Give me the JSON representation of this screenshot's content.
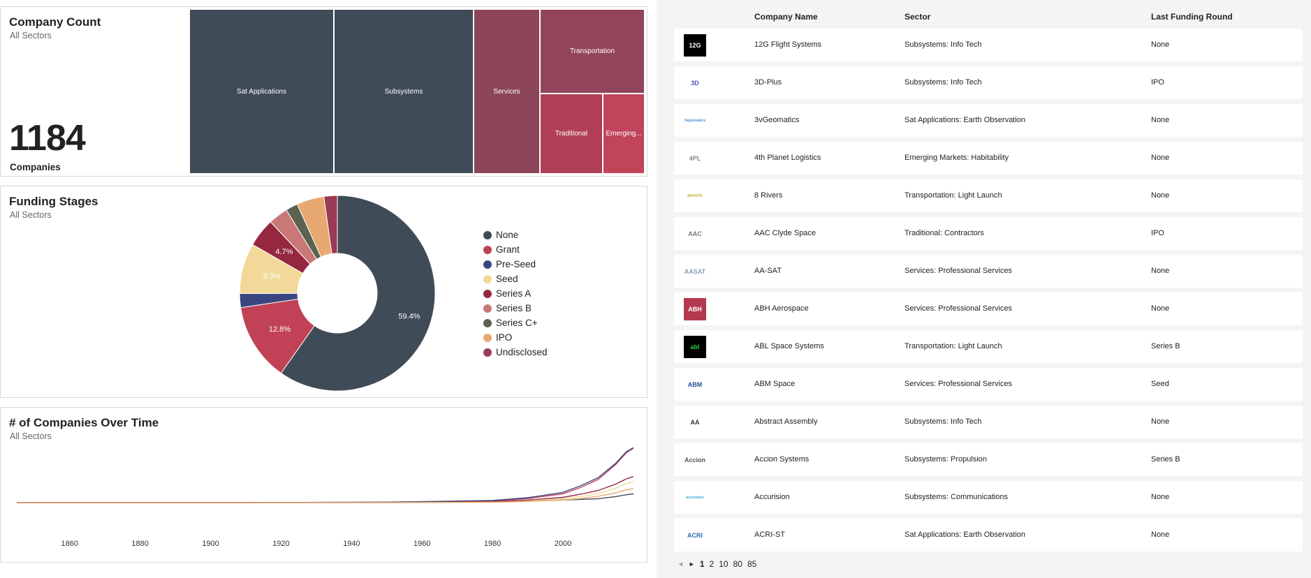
{
  "company_count": {
    "title": "Company Count",
    "subtitle": "All Sectors",
    "count": "1184",
    "count_label": "Companies",
    "treemap": [
      {
        "label": "Sat Applications",
        "color": "#404b58"
      },
      {
        "label": "Subsystems",
        "color": "#404b58"
      },
      {
        "label": "Services",
        "color": "#8c4559"
      },
      {
        "label": "Transportation",
        "color": "#92455a"
      },
      {
        "label": "Traditional",
        "color": "#b03f55"
      },
      {
        "label": "Emerging...",
        "color": "#c1445a"
      }
    ]
  },
  "funding_stages": {
    "title": "Funding Stages",
    "subtitle": "All Sectors",
    "legend": [
      {
        "label": "None",
        "color": "#404b58"
      },
      {
        "label": "Grant",
        "color": "#c14256"
      },
      {
        "label": "Pre-Seed",
        "color": "#3b4680"
      },
      {
        "label": "Seed",
        "color": "#f2d999"
      },
      {
        "label": "Series A",
        "color": "#95283f"
      },
      {
        "label": "Series B",
        "color": "#c97877"
      },
      {
        "label": "Series C+",
        "color": "#5c6250"
      },
      {
        "label": "IPO",
        "color": "#e8a871"
      },
      {
        "label": "Undisclosed",
        "color": "#9a3a55"
      }
    ]
  },
  "over_time": {
    "title": "# of Companies Over Time",
    "subtitle": "All Sectors",
    "x_ticks": [
      "1860",
      "1880",
      "1900",
      "1920",
      "1940",
      "1960",
      "1980",
      "2000"
    ]
  },
  "table": {
    "headers": [
      "Company Name",
      "Sector",
      "Last Funding Round"
    ],
    "rows": [
      {
        "name": "12G Flight Systems",
        "sector": "Subsystems: Info Tech",
        "round": "None",
        "logo_text": "12G",
        "logo_bg": "#000000",
        "logo_fg": "#ffffff"
      },
      {
        "name": "3D-Plus",
        "sector": "Subsystems: Info Tech",
        "round": "IPO",
        "logo_text": "3D",
        "logo_bg": "#ffffff",
        "logo_fg": "#4a56b0"
      },
      {
        "name": "3vGeomatics",
        "sector": "Sat Applications: Earth Observation",
        "round": "None",
        "logo_text": "3vgeomatics",
        "logo_bg": "#ffffff",
        "logo_fg": "#3d8fd6"
      },
      {
        "name": "4th Planet Logistics",
        "sector": "Emerging Markets: Habitability",
        "round": "None",
        "logo_text": "4PL",
        "logo_bg": "#ffffff",
        "logo_fg": "#888888"
      },
      {
        "name": "8 Rivers",
        "sector": "Transportation: Light Launch",
        "round": "None",
        "logo_text": "8RIVERS",
        "logo_bg": "#ffffff",
        "logo_fg": "#c9b04a"
      },
      {
        "name": "AAC Clyde Space",
        "sector": "Traditional: Contractors",
        "round": "IPO",
        "logo_text": "AAC",
        "logo_bg": "#ffffff",
        "logo_fg": "#777777"
      },
      {
        "name": "AA-SAT",
        "sector": "Services: Professional Services",
        "round": "None",
        "logo_text": "AASAT",
        "logo_bg": "#ffffff",
        "logo_fg": "#8a9bb5"
      },
      {
        "name": "ABH Aerospace",
        "sector": "Services: Professional Services",
        "round": "None",
        "logo_text": "ABH",
        "logo_bg": "#b33a4e",
        "logo_fg": "#ffffff"
      },
      {
        "name": "ABL Space Systems",
        "sector": "Transportation: Light Launch",
        "round": "Series B",
        "logo_text": "abl",
        "logo_bg": "#000000",
        "logo_fg": "#2ecc40"
      },
      {
        "name": "ABM Space",
        "sector": "Services: Professional Services",
        "round": "Seed",
        "logo_text": "ABM",
        "logo_bg": "#ffffff",
        "logo_fg": "#2a4aa0"
      },
      {
        "name": "Abstract Assembly",
        "sector": "Subsystems: Info Tech",
        "round": "None",
        "logo_text": "AA",
        "logo_bg": "#ffffff",
        "logo_fg": "#333333"
      },
      {
        "name": "Accion Systems",
        "sector": "Subsystems: Propulsion",
        "round": "Series B",
        "logo_text": "Accion",
        "logo_bg": "#ffffff",
        "logo_fg": "#555555"
      },
      {
        "name": "Accurision",
        "sector": "Subsystems: Communications",
        "round": "None",
        "logo_text": "accurision",
        "logo_bg": "#ffffff",
        "logo_fg": "#29a3d9"
      },
      {
        "name": "ACRI-ST",
        "sector": "Sat Applications: Earth Observation",
        "round": "None",
        "logo_text": "ACRI",
        "logo_bg": "#ffffff",
        "logo_fg": "#2a6bb0"
      }
    ]
  },
  "pagination": {
    "prev": "◄",
    "next": "►",
    "pages": [
      "1",
      "2",
      "10",
      "80",
      "85"
    ],
    "current": "1"
  },
  "chart_data": [
    {
      "type": "pie",
      "title": "Funding Stages",
      "categories": [
        "None",
        "Grant",
        "Pre-Seed",
        "Seed",
        "Series A",
        "Series B",
        "Series C+",
        "IPO",
        "Undisclosed"
      ],
      "values": [
        59.4,
        12.8,
        2.3,
        8.3,
        4.7,
        3.2,
        2.0,
        4.5,
        2.2
      ],
      "data_labels": [
        "59.4%",
        "12.8%",
        "",
        "8.3%",
        "4.7%",
        "",
        "",
        "",
        ""
      ]
    },
    {
      "type": "line",
      "title": "# of Companies Over Time",
      "x": [
        1845,
        1900,
        1950,
        1980,
        1990,
        2000,
        2005,
        2010,
        2015,
        2018,
        2020
      ],
      "x_ticks": [
        1860,
        1880,
        1900,
        1920,
        1940,
        1960,
        1980,
        2000
      ],
      "ylim": [
        0,
        500
      ],
      "series": [
        {
          "color": "#404b58",
          "values": [
            0,
            0,
            2,
            10,
            15,
            22,
            28,
            34,
            52,
            68,
            75
          ]
        },
        {
          "color": "#c14256",
          "values": [
            0,
            0,
            3,
            15,
            35,
            75,
            130,
            200,
            330,
            430,
            470
          ]
        },
        {
          "color": "#3b4680",
          "values": [
            0,
            0,
            4,
            18,
            42,
            88,
            145,
            215,
            340,
            440,
            475
          ]
        },
        {
          "color": "#f2d999",
          "values": [
            0,
            0,
            1,
            6,
            15,
            32,
            52,
            78,
            125,
            165,
            180
          ]
        },
        {
          "color": "#95283f",
          "values": [
            0,
            0,
            1,
            8,
            22,
            45,
            72,
            105,
            160,
            205,
            225
          ]
        },
        {
          "color": "#e8a871",
          "values": [
            0,
            0,
            0,
            4,
            10,
            22,
            35,
            55,
            85,
            110,
            120
          ]
        }
      ]
    }
  ]
}
